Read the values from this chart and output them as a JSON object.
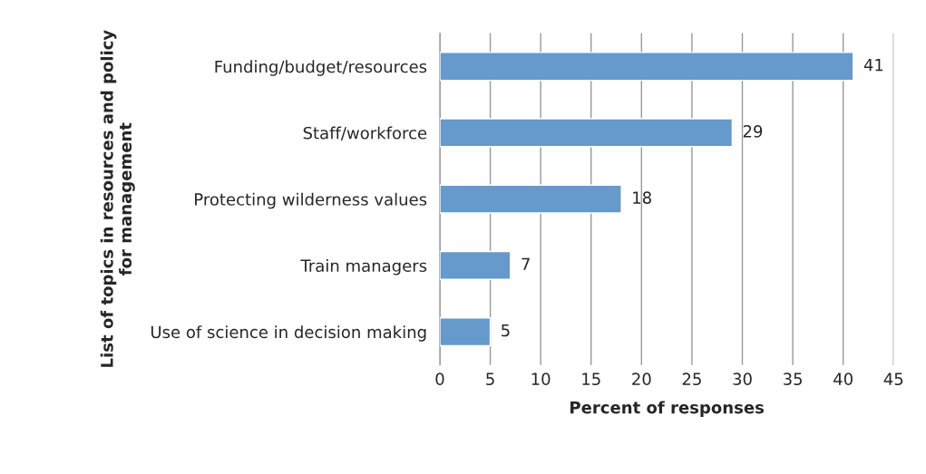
{
  "chart_data": {
    "type": "bar",
    "orientation": "horizontal",
    "categories": [
      "Funding/budget/resources",
      "Staff/workforce",
      "Protecting wilderness values",
      "Train managers",
      "Use of science in decision making"
    ],
    "values": [
      41,
      29,
      18,
      7,
      5
    ],
    "color": "#6699cc",
    "xlabel": "Percent of responses",
    "ylabel": "List of topics in resources and policy\nfor management",
    "xlim": [
      0,
      45
    ],
    "xticks": [
      0,
      5,
      10,
      15,
      20,
      25,
      30,
      35,
      40,
      45
    ],
    "grid": "x",
    "data_labels": true,
    "legend": false
  }
}
